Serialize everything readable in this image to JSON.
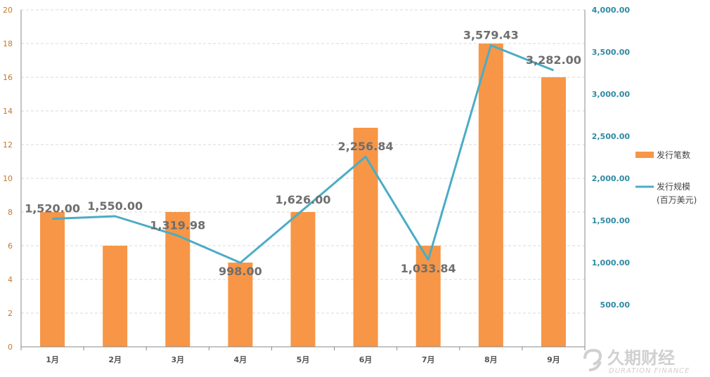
{
  "chart_data": {
    "type": "bar",
    "categories": [
      "1月",
      "2月",
      "3月",
      "4月",
      "5月",
      "6月",
      "7月",
      "8月",
      "9月"
    ],
    "series": [
      {
        "name": "发行笔数",
        "type": "bar",
        "axis": "left",
        "values": [
          8,
          6,
          8,
          5,
          8,
          13,
          6,
          18,
          16
        ]
      },
      {
        "name": "发行规模",
        "type": "line",
        "axis": "right",
        "values": [
          1520.0,
          1550.0,
          1319.98,
          998.0,
          1626.0,
          2256.84,
          1033.84,
          3579.43,
          3282.0
        ]
      }
    ],
    "data_labels": [
      "1,520.00",
      "1,550.00",
      "1,319.98",
      "998.00",
      "1,626.00",
      "2,256.84",
      "1,033.84",
      "3,579.43",
      "3,282.00"
    ],
    "legend": [
      {
        "label": "发行笔数",
        "sublabel": ""
      },
      {
        "label": "发行规模",
        "sublabel": "(百万美元)"
      }
    ],
    "legend_position": "right",
    "ylim_left": [
      0,
      20
    ],
    "ylim_right": [
      0,
      4000
    ],
    "yticks_left": [
      "0",
      "2",
      "4",
      "6",
      "8",
      "10",
      "12",
      "14",
      "16",
      "18",
      "20"
    ],
    "yticks_right": [
      "",
      "500.00",
      "1,000.00",
      "1,500.00",
      "2,000.00",
      "2,500.00",
      "3,000.00",
      "3,500.00",
      "4,000.00"
    ],
    "grid": true,
    "colors": {
      "bar": "#f79646",
      "line": "#4bacc6",
      "left_axis_text": "#c9772c",
      "right_axis_text": "#2f8aa2"
    }
  },
  "watermark": {
    "cn": "久期财经",
    "en": "DURATION FINANCE"
  }
}
